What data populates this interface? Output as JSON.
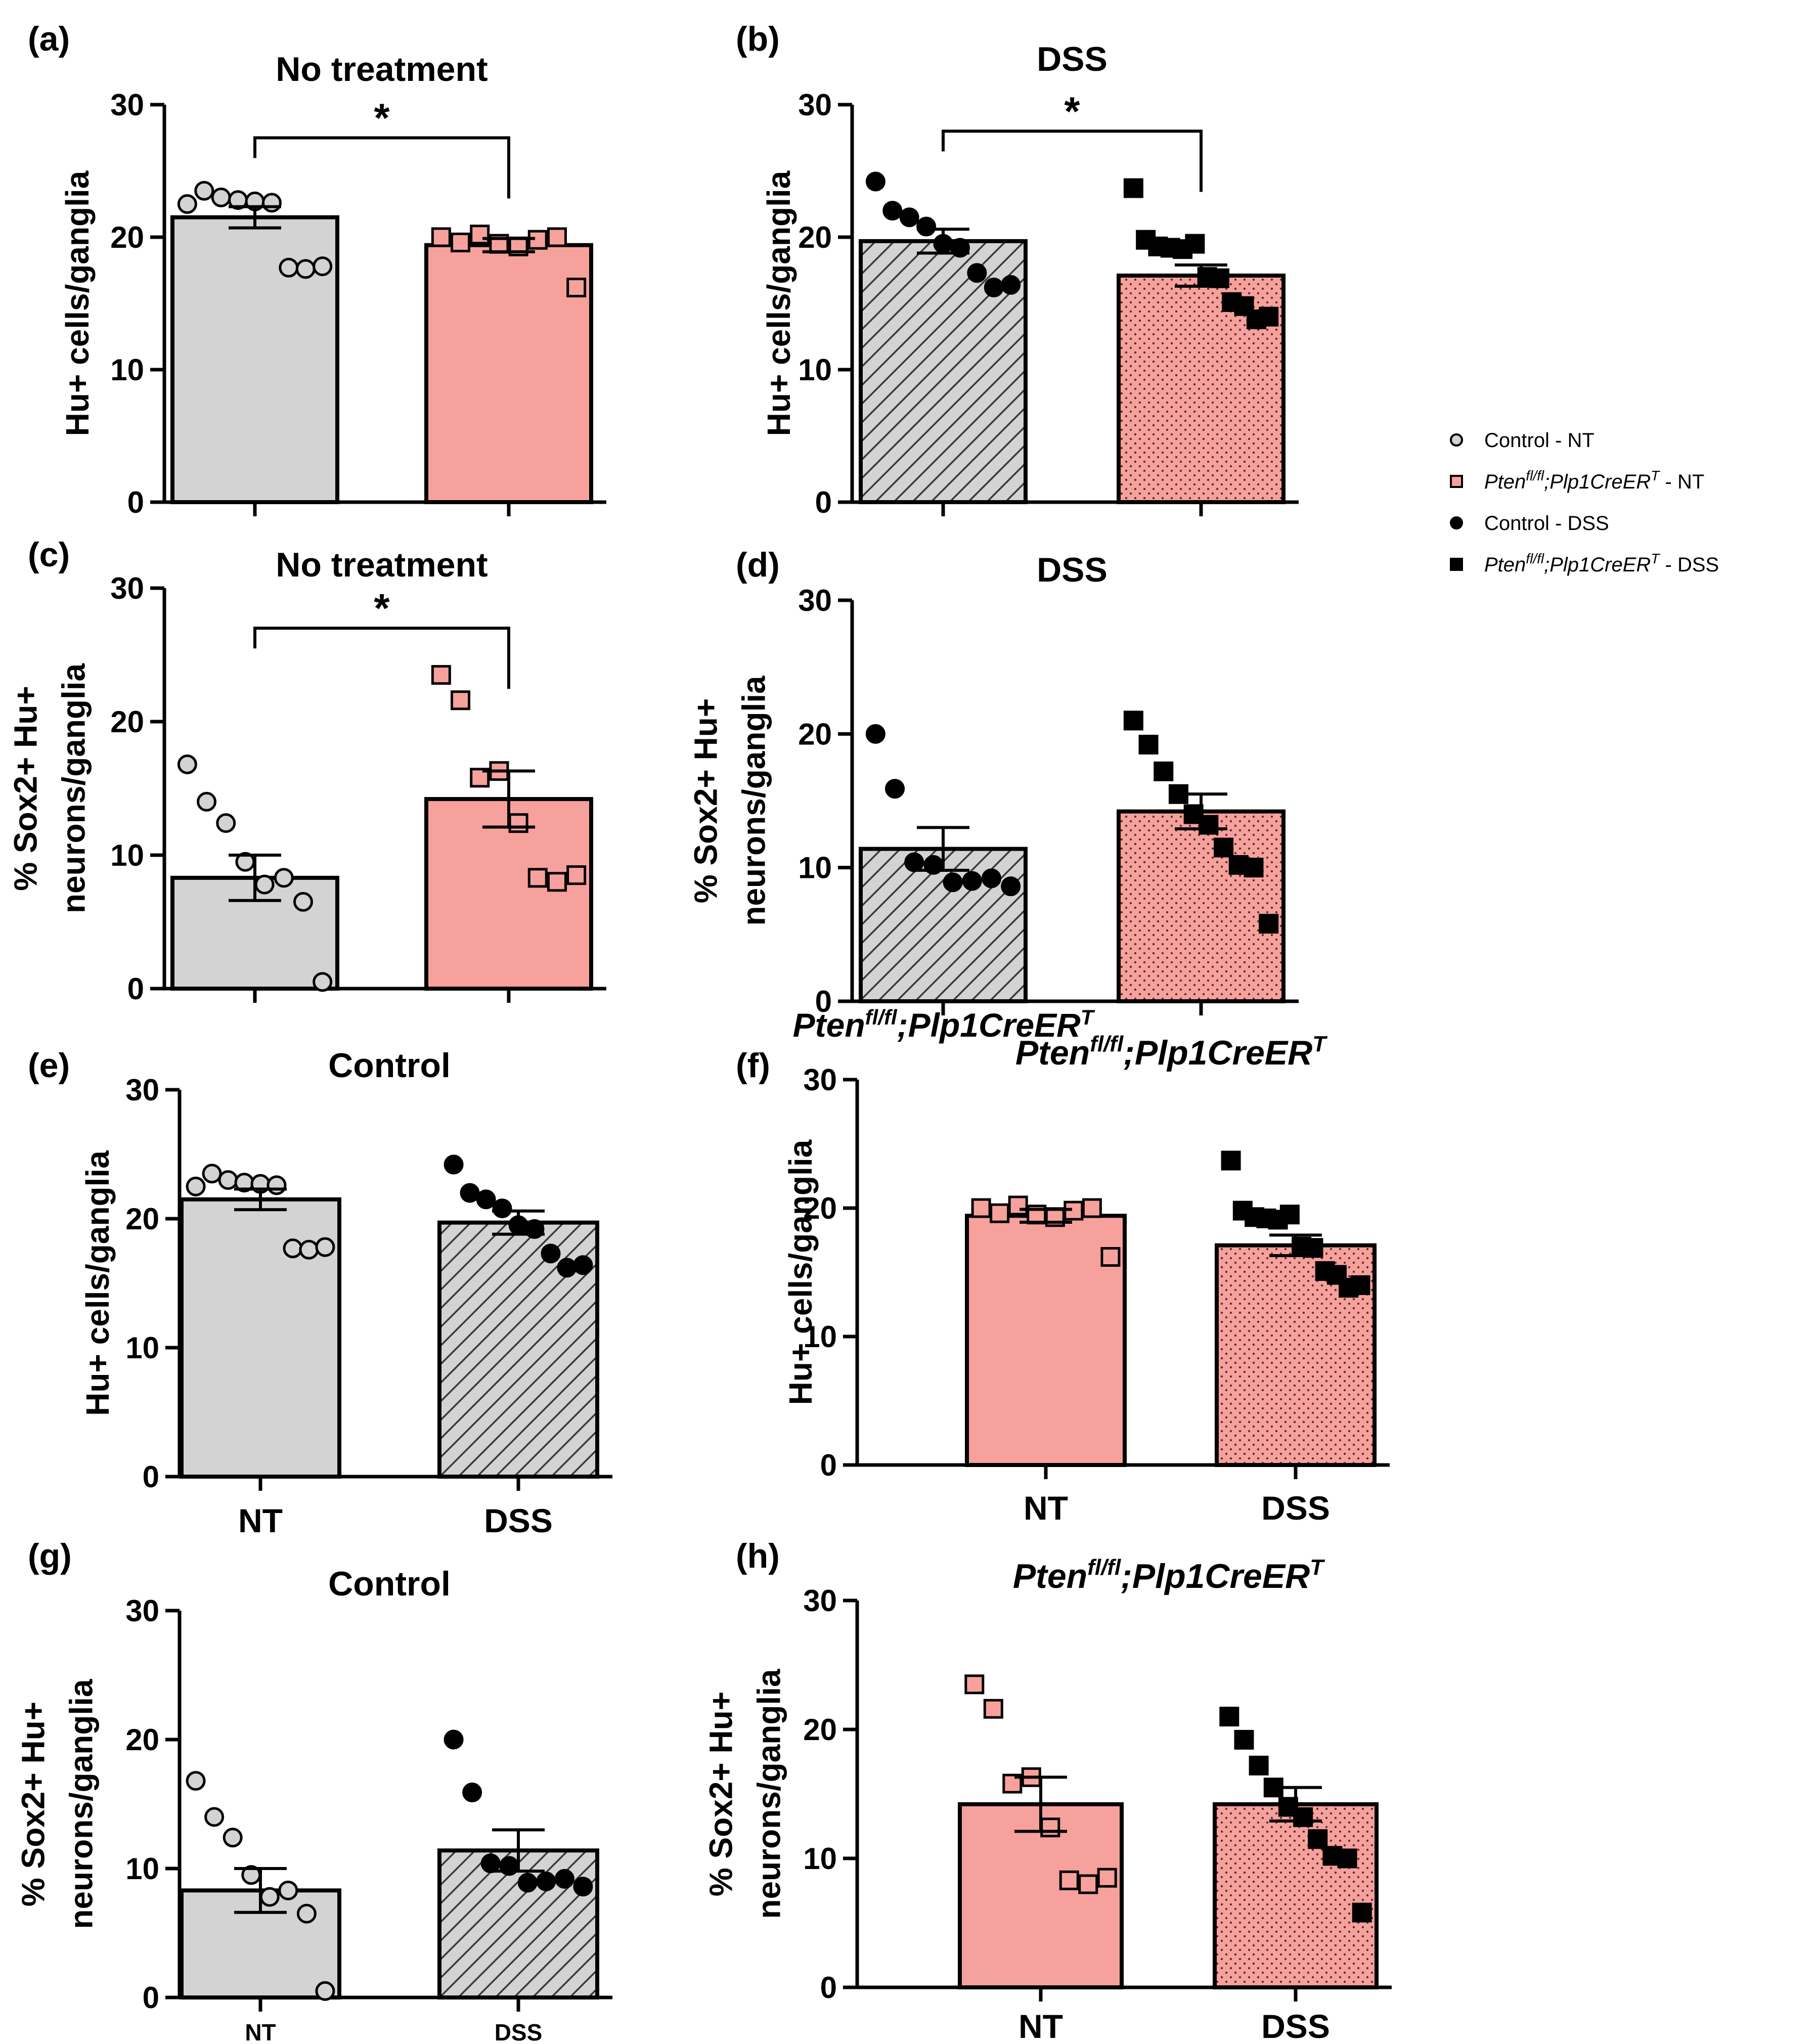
{
  "colors": {
    "control_fill": "#d3d3d3",
    "pten_fill": "#f7a19c",
    "axis": "#000000"
  },
  "legend": {
    "entries": [
      {
        "label_pre": "Control - NT",
        "label_sup": "",
        "label_mid": "",
        "label_sup2": "",
        "label_post": "",
        "marker": "circle",
        "fill": "#d3d3d3"
      },
      {
        "label_pre": "Pten",
        "label_sup": "fl/fl",
        "label_mid": ";Plp1CreER",
        "label_sup2": "T",
        "label_post": " - NT",
        "marker": "square",
        "fill": "#f7a19c"
      },
      {
        "label_pre": "Control - DSS",
        "label_sup": "",
        "label_mid": "",
        "label_sup2": "",
        "label_post": "",
        "marker": "circle",
        "fill": "#000000"
      },
      {
        "label_pre": "Pten",
        "label_sup": "fl/fl",
        "label_mid": ";Plp1CreER",
        "label_sup2": "T",
        "label_post": " - DSS",
        "marker": "square",
        "fill": "#000000"
      }
    ]
  },
  "chart_data": [
    {
      "type": "bar",
      "panel": "(a)",
      "title": {
        "pre": "No treatment",
        "sup": "",
        "mid": "",
        "sup2": ""
      },
      "ylabel": [
        "Hu+ cells/ganglia"
      ],
      "xlabel": "",
      "ylim": [
        0,
        30
      ],
      "yticks": [
        0,
        10,
        20,
        30
      ],
      "categories": [
        "",
        ""
      ],
      "category_size": "large",
      "bars": [
        {
          "group": "Control - NT",
          "mean": 21.5,
          "sem": 0.8,
          "fill": "control",
          "pattern": "none",
          "marker": "circle",
          "marker_fill": "#d3d3d3",
          "points": [
            22.5,
            23.5,
            23.0,
            22.8,
            22.7,
            22.6,
            17.7,
            17.6,
            17.8
          ]
        },
        {
          "group": "Pten NT",
          "mean": 19.4,
          "sem": 0.5,
          "fill": "pten",
          "pattern": "none",
          "marker": "square",
          "marker_fill": "#f7a19c",
          "points": [
            20.0,
            19.6,
            20.2,
            19.5,
            19.3,
            19.8,
            20.0,
            16.2
          ]
        }
      ],
      "significance": {
        "label": "*",
        "from": 0,
        "to": 1,
        "y": 27.5
      }
    },
    {
      "type": "bar",
      "panel": "(b)",
      "title": {
        "pre": "DSS",
        "sup": "",
        "mid": "",
        "sup2": ""
      },
      "ylabel": [
        "Hu+ cells/ganglia"
      ],
      "xlabel": "",
      "ylim": [
        0,
        30
      ],
      "yticks": [
        0,
        10,
        20,
        30
      ],
      "categories": [
        "",
        ""
      ],
      "category_size": "large",
      "bars": [
        {
          "group": "Control - DSS",
          "mean": 19.7,
          "sem": 0.9,
          "fill": "control",
          "pattern": "hatch",
          "marker": "circle",
          "marker_fill": "#000000",
          "points": [
            24.2,
            22.0,
            21.5,
            20.8,
            19.5,
            19.2,
            17.3,
            16.2,
            16.4
          ]
        },
        {
          "group": "Pten DSS",
          "mean": 17.1,
          "sem": 0.8,
          "fill": "pten",
          "pattern": "dots",
          "marker": "square",
          "marker_fill": "#000000",
          "points": [
            23.7,
            19.8,
            19.3,
            19.2,
            19.1,
            19.5,
            17.0,
            16.9,
            15.1,
            14.8,
            13.8,
            14.0
          ]
        }
      ],
      "significance": {
        "label": "*",
        "from": 0,
        "to": 1,
        "y": 28.0
      }
    },
    {
      "type": "bar",
      "panel": "(c)",
      "title": {
        "pre": "No treatment",
        "sup": "",
        "mid": "",
        "sup2": ""
      },
      "ylabel": [
        "% Sox2+ Hu+",
        "neurons/ganglia"
      ],
      "xlabel": "",
      "ylim": [
        0,
        30
      ],
      "yticks": [
        0,
        10,
        20,
        30
      ],
      "categories": [
        "",
        ""
      ],
      "category_size": "large",
      "bars": [
        {
          "group": "Control - NT",
          "mean": 8.3,
          "sem": 1.7,
          "fill": "control",
          "pattern": "none",
          "marker": "circle",
          "marker_fill": "#d3d3d3",
          "points": [
            16.8,
            14.0,
            12.4,
            9.5,
            7.8,
            8.3,
            6.5,
            0.5
          ]
        },
        {
          "group": "Pten NT",
          "mean": 14.2,
          "sem": 2.1,
          "fill": "pten",
          "pattern": "none",
          "marker": "square",
          "marker_fill": "#f7a19c",
          "points": [
            23.5,
            21.6,
            15.8,
            16.3,
            12.4,
            8.3,
            8.0,
            8.5
          ]
        }
      ],
      "significance": {
        "label": "*",
        "from": 0,
        "to": 1,
        "y": 27.0
      }
    },
    {
      "type": "bar",
      "panel": "(d)",
      "title": {
        "pre": "DSS",
        "sup": "",
        "mid": "",
        "sup2": ""
      },
      "ylabel": [
        "% Sox2+ Hu+",
        "neurons/ganglia"
      ],
      "xlabel": "",
      "ylim": [
        0,
        30
      ],
      "yticks": [
        0,
        10,
        20,
        30
      ],
      "categories": [
        "Pten^fl/fl;Plp1CreER^T",
        ""
      ],
      "category_size": "small",
      "bars": [
        {
          "group": "Control - DSS",
          "mean": 11.4,
          "sem": 1.6,
          "fill": "control",
          "pattern": "hatch",
          "marker": "circle",
          "marker_fill": "#000000",
          "points": [
            20.0,
            15.9,
            10.4,
            10.2,
            8.9,
            9.0,
            9.2,
            8.6
          ]
        },
        {
          "group": "Pten DSS",
          "mean": 14.2,
          "sem": 1.3,
          "fill": "pten",
          "pattern": "dots",
          "marker": "square",
          "marker_fill": "#000000",
          "points": [
            21.0,
            19.2,
            17.2,
            15.5,
            14.0,
            13.2,
            11.5,
            10.2,
            10.0,
            5.8
          ]
        }
      ],
      "significance": null
    },
    {
      "type": "bar",
      "panel": "(e)",
      "title": {
        "pre": "Control",
        "sup": "",
        "mid": "",
        "sup2": ""
      },
      "ylabel": [
        "Hu+ cells/ganglia"
      ],
      "xlabel": "",
      "ylim": [
        0,
        30
      ],
      "yticks": [
        0,
        10,
        20,
        30
      ],
      "categories": [
        "NT",
        "DSS"
      ],
      "category_size": "large",
      "bars": [
        {
          "group": "Control - NT",
          "mean": 21.5,
          "sem": 0.8,
          "fill": "control",
          "pattern": "none",
          "marker": "circle",
          "marker_fill": "#d3d3d3",
          "points": [
            22.5,
            23.5,
            23.0,
            22.8,
            22.7,
            22.6,
            17.7,
            17.6,
            17.8
          ]
        },
        {
          "group": "Control - DSS",
          "mean": 19.7,
          "sem": 0.9,
          "fill": "control",
          "pattern": "hatch",
          "marker": "circle",
          "marker_fill": "#000000",
          "points": [
            24.2,
            22.0,
            21.5,
            20.8,
            19.5,
            19.2,
            17.3,
            16.2,
            16.4
          ]
        }
      ],
      "significance": null
    },
    {
      "type": "bar",
      "panel": "(f)",
      "title": {
        "pre": "Pten",
        "sup": "fl/fl",
        "mid": ";Plp1CreER",
        "sup2": "T"
      },
      "ylabel": [
        "Hu+ cells/ganglia"
      ],
      "xlabel": "",
      "ylim": [
        0,
        30
      ],
      "yticks": [
        0,
        10,
        20,
        30
      ],
      "categories": [
        "NT",
        "DSS"
      ],
      "category_size": "large",
      "bars": [
        {
          "group": "Pten NT",
          "mean": 19.4,
          "sem": 0.5,
          "fill": "pten",
          "pattern": "none",
          "marker": "square",
          "marker_fill": "#f7a19c",
          "points": [
            20.0,
            19.6,
            20.2,
            19.5,
            19.3,
            19.8,
            20.0,
            16.2
          ]
        },
        {
          "group": "Pten DSS",
          "mean": 17.1,
          "sem": 0.8,
          "fill": "pten",
          "pattern": "dots",
          "marker": "square",
          "marker_fill": "#000000",
          "points": [
            23.7,
            19.8,
            19.3,
            19.2,
            19.1,
            19.5,
            17.0,
            16.9,
            15.1,
            14.8,
            13.8,
            14.0
          ]
        }
      ],
      "significance": null
    },
    {
      "type": "bar",
      "panel": "(g)",
      "title": {
        "pre": "Control",
        "sup": "",
        "mid": "",
        "sup2": ""
      },
      "ylabel": [
        "% Sox2+ Hu+",
        "neurons/ganglia"
      ],
      "xlabel": "",
      "ylim": [
        0,
        30
      ],
      "yticks": [
        0,
        10,
        20,
        30
      ],
      "categories": [
        "NT",
        "DSS"
      ],
      "category_size": "small",
      "bars": [
        {
          "group": "Control - NT",
          "mean": 8.3,
          "sem": 1.7,
          "fill": "control",
          "pattern": "none",
          "marker": "circle",
          "marker_fill": "#d3d3d3",
          "points": [
            16.8,
            14.0,
            12.4,
            9.5,
            7.8,
            8.3,
            6.5,
            0.5
          ]
        },
        {
          "group": "Control - DSS",
          "mean": 11.4,
          "sem": 1.6,
          "fill": "control",
          "pattern": "hatch",
          "marker": "circle",
          "marker_fill": "#000000",
          "points": [
            20.0,
            15.9,
            10.4,
            10.2,
            8.9,
            9.0,
            9.2,
            8.6
          ]
        }
      ],
      "significance": null
    },
    {
      "type": "bar",
      "panel": "(h)",
      "title": {
        "pre": "Pten",
        "sup": "fl/fl",
        "mid": ";Plp1CreER",
        "sup2": "T"
      },
      "ylabel": [
        "% Sox2+ Hu+",
        "neurons/ganglia"
      ],
      "xlabel": "",
      "ylim": [
        0,
        30
      ],
      "yticks": [
        0,
        10,
        20,
        30
      ],
      "categories": [
        "NT",
        "DSS"
      ],
      "category_size": "large",
      "bars": [
        {
          "group": "Pten NT",
          "mean": 14.2,
          "sem": 2.1,
          "fill": "pten",
          "pattern": "none",
          "marker": "square",
          "marker_fill": "#f7a19c",
          "points": [
            23.5,
            21.6,
            15.8,
            16.3,
            12.4,
            8.3,
            8.0,
            8.5
          ]
        },
        {
          "group": "Pten DSS",
          "mean": 14.2,
          "sem": 1.3,
          "fill": "pten",
          "pattern": "dots",
          "marker": "square",
          "marker_fill": "#000000",
          "points": [
            21.0,
            19.2,
            17.2,
            15.5,
            14.0,
            13.2,
            11.5,
            10.2,
            10.0,
            5.8
          ]
        }
      ],
      "significance": null
    }
  ]
}
